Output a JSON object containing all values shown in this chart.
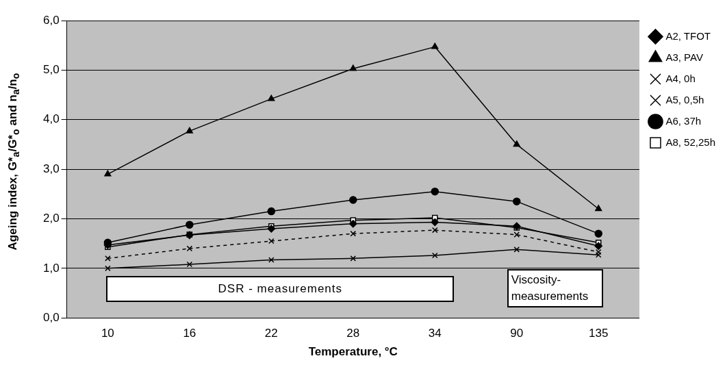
{
  "chart_data": {
    "type": "line",
    "categories": [
      "10",
      "16",
      "22",
      "28",
      "34",
      "90",
      "135"
    ],
    "xlabel": "Temperature, °C",
    "ylabel": "Ageing index, G*$_{a}$/G*$_{o}$ and n$_{a}$/n$_{o}$",
    "ylim": [
      0,
      6
    ],
    "yticks": [
      {
        "value": 0,
        "label": "0,0"
      },
      {
        "value": 1,
        "label": "1,0"
      },
      {
        "value": 2,
        "label": "2,0"
      },
      {
        "value": 3,
        "label": "3,0"
      },
      {
        "value": 4,
        "label": "4,0"
      },
      {
        "value": 5,
        "label": "5,0"
      },
      {
        "value": 6,
        "label": "6,0"
      }
    ],
    "grid": "y",
    "legend": "right",
    "annotations": [
      "DSR - measurements",
      "Viscosity-measurements"
    ],
    "series": [
      {
        "name": "A2, TFOT",
        "color": "#000000",
        "marker": "diamond",
        "line_style": "solid",
        "values": [
          1.47,
          1.67,
          1.8,
          1.9,
          1.93,
          1.85,
          1.45
        ]
      },
      {
        "name": "A3, PAV",
        "color": "#000000",
        "marker": "triangle",
        "line_style": "solid",
        "values": [
          2.9,
          3.77,
          4.42,
          5.03,
          5.47,
          3.5,
          2.2
        ]
      },
      {
        "name": "A4, 0h",
        "color": "#000000",
        "marker": "cross",
        "line_style": "solid",
        "values": [
          1.0,
          1.08,
          1.17,
          1.2,
          1.26,
          1.38,
          1.27
        ]
      },
      {
        "name": "A5, 0,5h",
        "color": "#000000",
        "marker": "cross",
        "line_style": "dashed",
        "values": [
          1.2,
          1.4,
          1.55,
          1.7,
          1.77,
          1.68,
          1.33
        ]
      },
      {
        "name": "A6, 37h",
        "color": "#000000",
        "marker": "circle",
        "line_style": "solid",
        "values": [
          1.52,
          1.88,
          2.15,
          2.38,
          2.55,
          2.35,
          1.7
        ]
      },
      {
        "name": "A8, 52,25h",
        "color": "#000000",
        "marker": "square",
        "line_style": "solid",
        "values": [
          1.43,
          1.68,
          1.85,
          1.97,
          2.02,
          1.82,
          1.52
        ]
      }
    ]
  }
}
